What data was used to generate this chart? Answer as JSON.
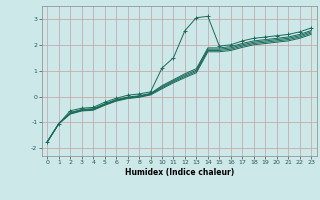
{
  "title": "",
  "xlabel": "Humidex (Indice chaleur)",
  "ylabel": "",
  "bg_color": "#cce8e8",
  "grid_color": "#c8a0a0",
  "line_color": "#1a6b5a",
  "xlim": [
    -0.5,
    23.5
  ],
  "ylim": [
    -2.3,
    3.5
  ],
  "yticks": [
    -2,
    -1,
    0,
    1,
    2,
    3
  ],
  "xticks": [
    0,
    1,
    2,
    3,
    4,
    5,
    6,
    7,
    8,
    9,
    10,
    11,
    12,
    13,
    14,
    15,
    16,
    17,
    18,
    19,
    20,
    21,
    22,
    23
  ],
  "lines": [
    {
      "x": [
        0,
        1,
        2,
        3,
        4,
        5,
        6,
        7,
        8,
        9,
        10,
        11,
        12,
        13,
        14,
        15,
        16,
        17,
        18,
        19,
        20,
        21,
        22,
        23
      ],
      "y": [
        -1.75,
        -1.05,
        -0.55,
        -0.45,
        -0.42,
        -0.22,
        -0.07,
        0.05,
        0.1,
        0.18,
        1.1,
        1.5,
        2.55,
        3.05,
        3.1,
        1.95,
        2.0,
        2.15,
        2.25,
        2.3,
        2.35,
        2.4,
        2.5,
        2.65
      ],
      "marker": true
    },
    {
      "x": [
        0,
        1,
        2,
        3,
        4,
        5,
        6,
        7,
        8,
        9,
        10,
        11,
        12,
        13,
        14,
        15,
        16,
        17,
        18,
        19,
        20,
        21,
        22,
        23
      ],
      "y": [
        -1.75,
        -1.05,
        -0.62,
        -0.5,
        -0.47,
        -0.28,
        -0.12,
        -0.02,
        0.03,
        0.12,
        0.42,
        0.65,
        0.88,
        1.08,
        1.88,
        1.88,
        1.93,
        2.05,
        2.15,
        2.2,
        2.25,
        2.3,
        2.4,
        2.55
      ],
      "marker": false
    },
    {
      "x": [
        0,
        1,
        2,
        3,
        4,
        5,
        6,
        7,
        8,
        9,
        10,
        11,
        12,
        13,
        14,
        15,
        16,
        17,
        18,
        19,
        20,
        21,
        22,
        23
      ],
      "y": [
        -1.75,
        -1.05,
        -0.64,
        -0.52,
        -0.49,
        -0.3,
        -0.14,
        -0.04,
        0.01,
        0.1,
        0.38,
        0.61,
        0.83,
        1.02,
        1.83,
        1.83,
        1.88,
        2.0,
        2.1,
        2.15,
        2.2,
        2.25,
        2.35,
        2.5
      ],
      "marker": false
    },
    {
      "x": [
        0,
        1,
        2,
        3,
        4,
        5,
        6,
        7,
        8,
        9,
        10,
        11,
        12,
        13,
        14,
        15,
        16,
        17,
        18,
        19,
        20,
        21,
        22,
        23
      ],
      "y": [
        -1.75,
        -1.05,
        -0.66,
        -0.54,
        -0.51,
        -0.32,
        -0.16,
        -0.06,
        -0.01,
        0.08,
        0.34,
        0.57,
        0.78,
        0.97,
        1.78,
        1.78,
        1.83,
        1.95,
        2.05,
        2.1,
        2.15,
        2.2,
        2.3,
        2.45
      ],
      "marker": false
    },
    {
      "x": [
        0,
        1,
        2,
        3,
        4,
        5,
        6,
        7,
        8,
        9,
        10,
        11,
        12,
        13,
        14,
        15,
        16,
        17,
        18,
        19,
        20,
        21,
        22,
        23
      ],
      "y": [
        -1.75,
        -1.05,
        -0.68,
        -0.56,
        -0.53,
        -0.34,
        -0.18,
        -0.08,
        -0.03,
        0.06,
        0.3,
        0.53,
        0.73,
        0.92,
        1.73,
        1.73,
        1.78,
        1.9,
        2.0,
        2.05,
        2.1,
        2.15,
        2.25,
        2.4
      ],
      "marker": false
    }
  ]
}
